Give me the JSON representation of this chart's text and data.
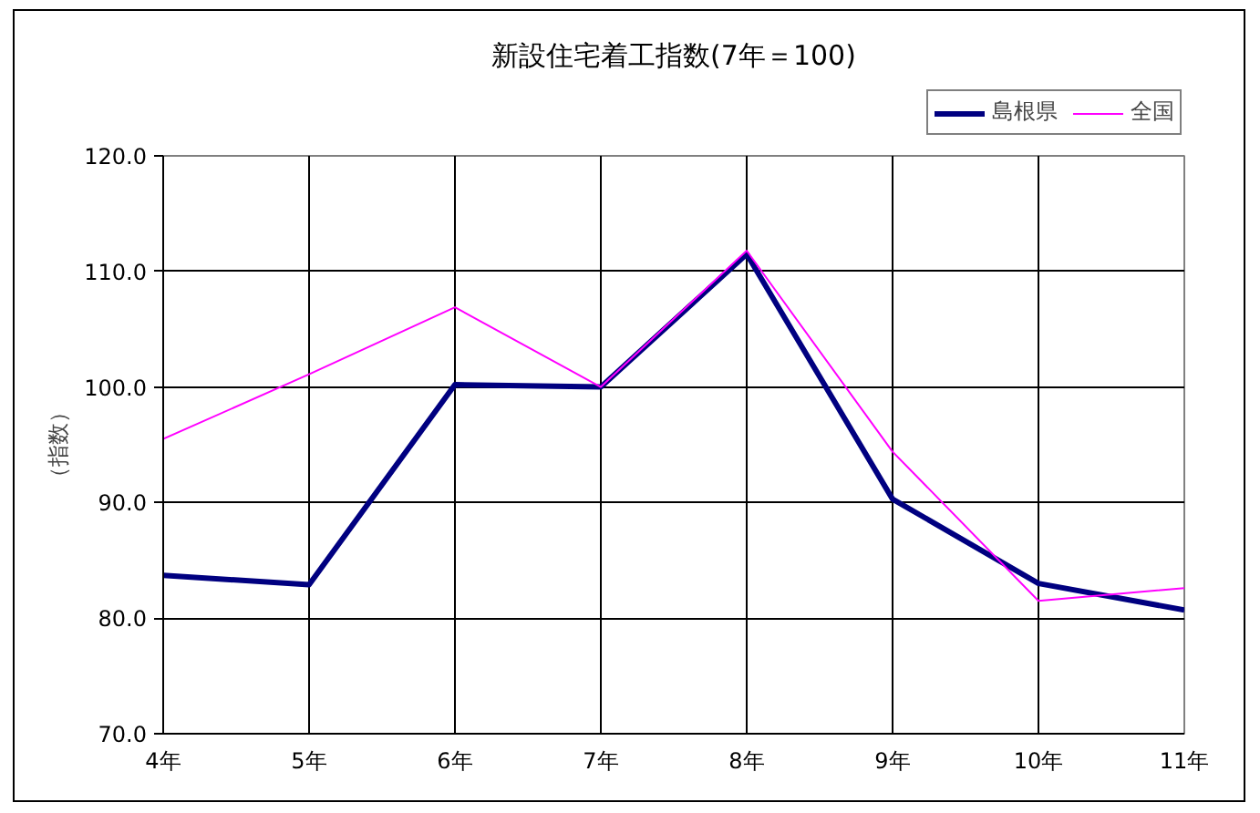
{
  "chart_data": {
    "type": "line",
    "title": "新設住宅着工指数(7年＝100)",
    "ylabel": "（指数）",
    "categories": [
      "4年",
      "5年",
      "6年",
      "7年",
      "8年",
      "9年",
      "10年",
      "11年"
    ],
    "series": [
      {
        "name": "島根県",
        "color": "#000080",
        "values": [
          83.7,
          82.9,
          100.2,
          100,
          111.5,
          90.3,
          83.0,
          80.7
        ]
      },
      {
        "name": "全国",
        "color": "#ff00ff",
        "values": [
          95.5,
          101.1,
          106.9,
          100,
          111.8,
          94.4,
          81.5,
          82.6
        ]
      }
    ],
    "ylim": [
      70,
      120
    ],
    "yticks": [
      {
        "value": 70,
        "label": "70.0"
      },
      {
        "value": 80,
        "label": "80.0"
      },
      {
        "value": 90,
        "label": "90.0"
      },
      {
        "value": 100,
        "label": "100.0"
      },
      {
        "value": 110,
        "label": "110.0"
      },
      {
        "value": 120,
        "label": "120.0"
      }
    ],
    "grid": true,
    "legend": "top right",
    "marker": "none",
    "line_style": "solid"
  }
}
